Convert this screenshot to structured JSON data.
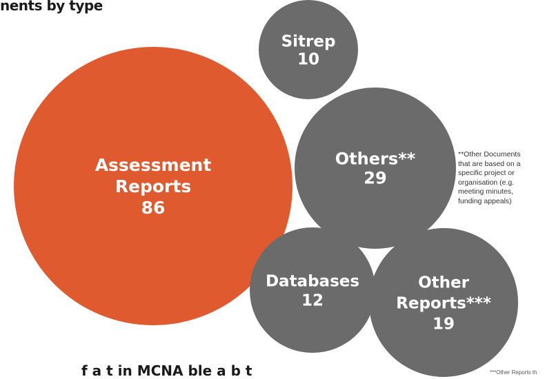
{
  "header": {
    "title": "nents by type"
  },
  "footer": {
    "caption": "f                 a                          t    in     MCNA                 ble              a       b             t"
  },
  "colors": {
    "primary": "#e05a30",
    "secondary": "#6b6b6b"
  },
  "chart_data": {
    "type": "bubble",
    "title": "nents by type",
    "bubbles": [
      {
        "label_lines": [
          "Assessment",
          "Reports"
        ],
        "value": 86,
        "color": "#e05a30"
      },
      {
        "label_lines": [
          "Sitrep"
        ],
        "value": 10,
        "color": "#6b6b6b"
      },
      {
        "label_lines": [
          "Others**"
        ],
        "value": 29,
        "color": "#6b6b6b"
      },
      {
        "label_lines": [
          "Databases"
        ],
        "value": 12,
        "color": "#6b6b6b"
      },
      {
        "label_lines": [
          "Other",
          "Reports***"
        ],
        "value": 19,
        "color": "#6b6b6b"
      }
    ]
  },
  "notes": {
    "others_note_lines": [
      "**Other Documents",
      "that are based on a",
      "specific project or",
      "organisation (e.g.",
      "meeting minutes,",
      "funding appeals)"
    ],
    "other_reports_note": "***Other Reports th"
  }
}
